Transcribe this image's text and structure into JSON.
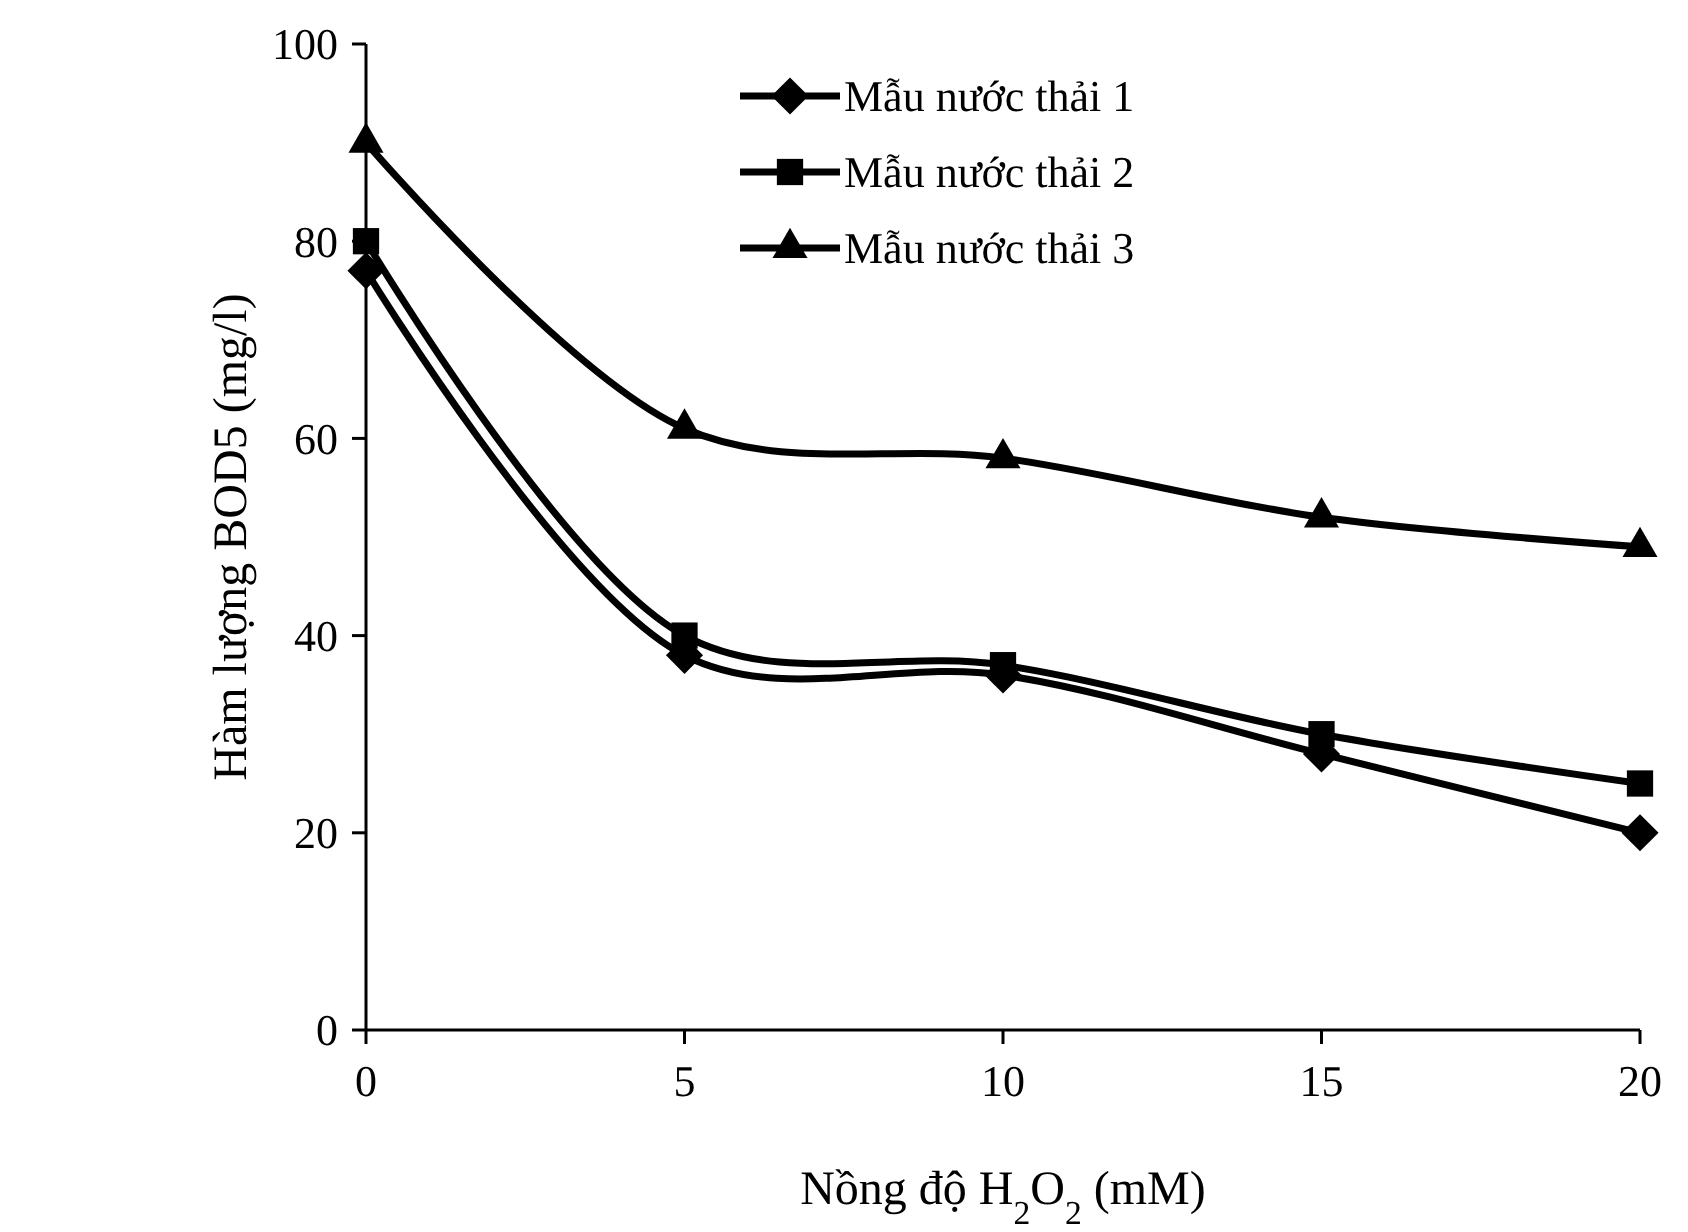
{
  "chart_data": {
    "type": "line",
    "xlabel": "Nồng độ H$_{2}$O$_{2}$ (mM)",
    "ylabel": "Hàm lượng BOD5 (mg/l)",
    "x": [
      0,
      5,
      10,
      15,
      20
    ],
    "xlim": [
      0,
      20
    ],
    "xticks": [
      0,
      5,
      10,
      15,
      20
    ],
    "ylim": [
      0,
      100
    ],
    "yticks": [
      0,
      20,
      40,
      60,
      80,
      100
    ],
    "legend": "top",
    "grid": false,
    "line_style": "solid",
    "series": [
      {
        "name": "Mẫu nước thải 1",
        "color": "#000000",
        "marker": "diamond",
        "values": [
          77,
          38,
          36,
          28,
          20
        ]
      },
      {
        "name": "Mẫu nước thải 2",
        "color": "#000000",
        "marker": "square",
        "values": [
          80,
          40,
          37,
          30,
          25
        ]
      },
      {
        "name": "Mẫu nước thải 3",
        "color": "#000000",
        "marker": "triangle",
        "values": [
          90,
          61,
          58,
          52,
          49
        ]
      }
    ]
  }
}
